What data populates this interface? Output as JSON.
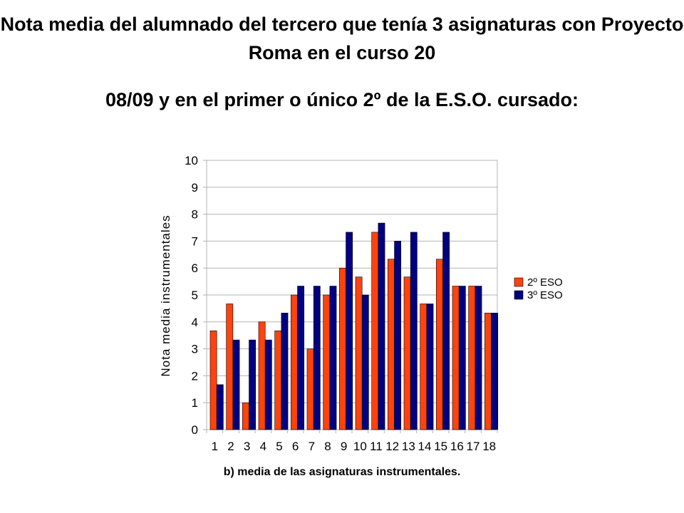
{
  "title": {
    "line1": "Nota media del alumnado del tercero que tenía 3 asignaturas con Proyecto Roma en el curso 20",
    "line2": "08/09 y en el primer o único 2º de la E.S.O. cursado:"
  },
  "caption": "b) media de las asignaturas instrumentales.",
  "chart_data": {
    "type": "bar",
    "categories": [
      "1",
      "2",
      "3",
      "4",
      "5",
      "6",
      "7",
      "8",
      "9",
      "10",
      "11",
      "12",
      "13",
      "14",
      "15",
      "16",
      "17",
      "18"
    ],
    "series": [
      {
        "name": "2º ESO",
        "color": "#ff420e",
        "values": [
          3.67,
          4.67,
          1.0,
          4.0,
          3.67,
          5.0,
          3.0,
          5.0,
          6.0,
          5.67,
          7.33,
          6.33,
          5.67,
          4.67,
          6.33,
          5.33,
          5.33,
          4.33
        ]
      },
      {
        "name": "3º ESO",
        "color": "#000080",
        "values": [
          1.67,
          3.33,
          3.33,
          3.33,
          4.33,
          5.33,
          5.33,
          5.33,
          7.33,
          5.0,
          7.67,
          7.0,
          7.33,
          4.67,
          7.33,
          5.33,
          5.33,
          4.33
        ]
      }
    ],
    "ylabel": "Nota media instrumentales",
    "xlabel": "",
    "ylim": [
      0,
      10
    ],
    "yticks": [
      0,
      1,
      2,
      3,
      4,
      5,
      6,
      7,
      8,
      9,
      10
    ],
    "grid": true,
    "legend": "right"
  }
}
